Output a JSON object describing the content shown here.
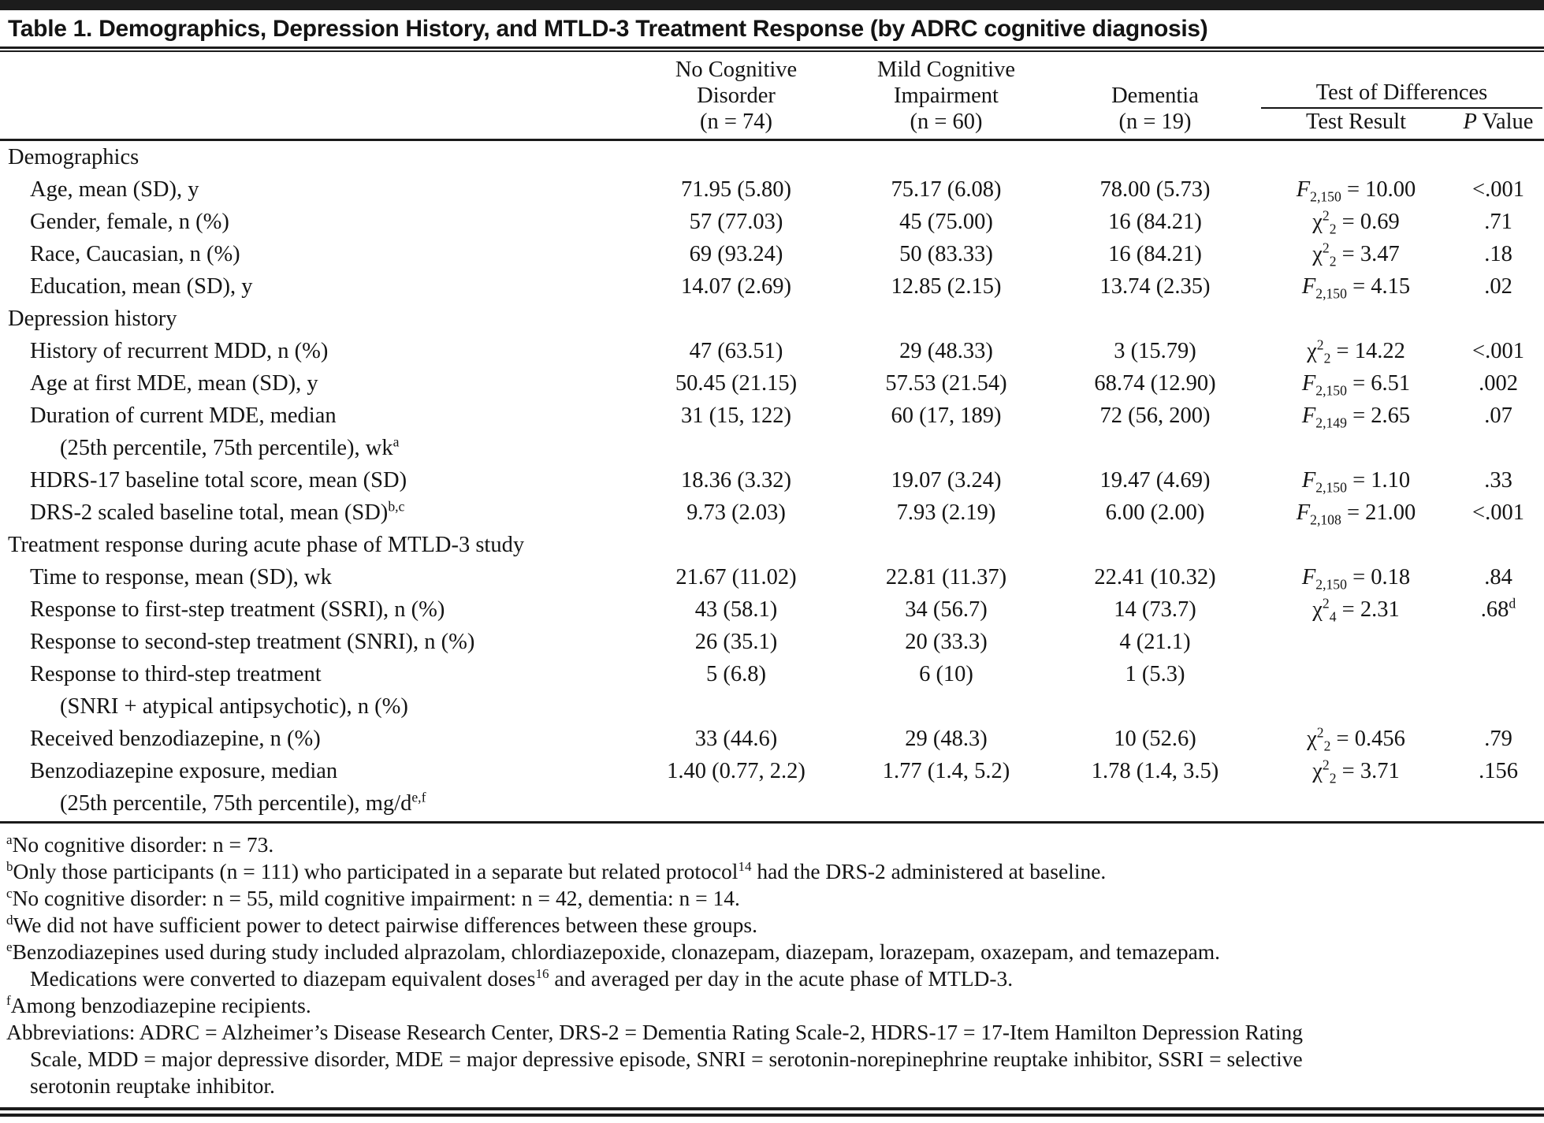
{
  "title": "Table 1. Demographics, Depression History, and MTLD-3 Treatment Response (by ADRC cognitive diagnosis)",
  "table": {
    "columns": [
      {
        "line1": "No Cognitive",
        "line2": "Disorder",
        "n": "(n = 74)"
      },
      {
        "line1": "Mild Cognitive",
        "line2": "Impairment",
        "n": "(n = 60)"
      },
      {
        "line1": "Dementia",
        "line2": "",
        "n": "(n = 19)"
      }
    ],
    "test_of_differences_label": "Test of Differences",
    "test_result_label": "Test Result",
    "p_value_label": [
      {
        "t": "P",
        "i": true
      },
      {
        "t": " Value"
      }
    ],
    "rows": [
      {
        "section": "Demographics"
      },
      {
        "label": [
          {
            "t": "Age, mean (SD), y"
          }
        ],
        "v1": "71.95 (5.80)",
        "v2": "75.17 (6.08)",
        "v3": "78.00 (5.73)",
        "test": [
          {
            "t": "F",
            "i": true
          },
          {
            "sub": "2,150"
          },
          {
            "t": " = 10.00"
          }
        ],
        "p": [
          {
            "t": "<.001"
          }
        ]
      },
      {
        "label": [
          {
            "t": "Gender, female, n (%)"
          }
        ],
        "v1": "57 (77.03)",
        "v2": "45 (75.00)",
        "v3": "16 (84.21)",
        "test": [
          {
            "t": "χ"
          },
          {
            "sup": "2"
          },
          {
            "sub": "2"
          },
          {
            "t": " = 0.69"
          }
        ],
        "p": [
          {
            "t": ".71"
          }
        ]
      },
      {
        "label": [
          {
            "t": "Race, Caucasian, n (%)"
          }
        ],
        "v1": "69 (93.24)",
        "v2": "50 (83.33)",
        "v3": "16 (84.21)",
        "test": [
          {
            "t": "χ"
          },
          {
            "sup": "2"
          },
          {
            "sub": "2"
          },
          {
            "t": " = 3.47"
          }
        ],
        "p": [
          {
            "t": ".18"
          }
        ]
      },
      {
        "label": [
          {
            "t": "Education, mean (SD), y"
          }
        ],
        "v1": "14.07 (2.69)",
        "v2": "12.85 (2.15)",
        "v3": "13.74 (2.35)",
        "test": [
          {
            "t": "F",
            "i": true
          },
          {
            "sub": "2,150"
          },
          {
            "t": " = 4.15"
          }
        ],
        "p": [
          {
            "t": ".02"
          }
        ]
      },
      {
        "section": "Depression history"
      },
      {
        "label": [
          {
            "t": "History of recurrent MDD, n (%)"
          }
        ],
        "v1": "47 (63.51)",
        "v2": "29 (48.33)",
        "v3": "3 (15.79)",
        "test": [
          {
            "t": "χ"
          },
          {
            "sup": "2"
          },
          {
            "sub": "2"
          },
          {
            "t": " = 14.22"
          }
        ],
        "p": [
          {
            "t": "<.001"
          }
        ]
      },
      {
        "label": [
          {
            "t": "Age at first MDE, mean (SD), y"
          }
        ],
        "v1": "50.45 (21.15)",
        "v2": "57.53 (21.54)",
        "v3": "68.74 (12.90)",
        "test": [
          {
            "t": "F",
            "i": true
          },
          {
            "sub": "2,150"
          },
          {
            "t": " = 6.51"
          }
        ],
        "p": [
          {
            "t": ".002"
          }
        ]
      },
      {
        "label": [
          {
            "t": "Duration of current MDE, median"
          }
        ],
        "label2": [
          {
            "t": "(25th percentile, 75th percentile), wk"
          },
          {
            "sup": "a"
          }
        ],
        "v1": "31 (15, 122)",
        "v2": "60 (17, 189)",
        "v3": "72 (56, 200)",
        "test": [
          {
            "t": "F",
            "i": true
          },
          {
            "sub": "2,149"
          },
          {
            "t": " = 2.65"
          }
        ],
        "p": [
          {
            "t": ".07"
          }
        ]
      },
      {
        "label": [
          {
            "t": "HDRS-17 baseline total score, mean (SD)"
          }
        ],
        "v1": "18.36 (3.32)",
        "v2": "19.07 (3.24)",
        "v3": "19.47 (4.69)",
        "test": [
          {
            "t": "F",
            "i": true
          },
          {
            "sub": "2,150"
          },
          {
            "t": " = 1.10"
          }
        ],
        "p": [
          {
            "t": ".33"
          }
        ]
      },
      {
        "label": [
          {
            "t": "DRS-2 scaled baseline total, mean (SD)"
          },
          {
            "sup": "b,c"
          }
        ],
        "v1": "9.73 (2.03)",
        "v2": "7.93 (2.19)",
        "v3": "6.00 (2.00)",
        "test": [
          {
            "t": "F",
            "i": true
          },
          {
            "sub": "2,108"
          },
          {
            "t": " = 21.00"
          }
        ],
        "p": [
          {
            "t": "<.001"
          }
        ]
      },
      {
        "section": "Treatment response during acute phase of MTLD-3 study"
      },
      {
        "label": [
          {
            "t": "Time to response, mean (SD), wk"
          }
        ],
        "v1": "21.67 (11.02)",
        "v2": "22.81 (11.37)",
        "v3": "22.41 (10.32)",
        "test": [
          {
            "t": "F",
            "i": true
          },
          {
            "sub": "2,150"
          },
          {
            "t": " = 0.18"
          }
        ],
        "p": [
          {
            "t": ".84"
          }
        ]
      },
      {
        "label": [
          {
            "t": "Response to first-step treatment (SSRI), n (%)"
          }
        ],
        "v1": "43 (58.1)",
        "v2": "34 (56.7)",
        "v3": "14 (73.7)",
        "test": [
          {
            "t": "χ"
          },
          {
            "sup": "2"
          },
          {
            "sub": "4"
          },
          {
            "t": " = 2.31"
          }
        ],
        "p": [
          {
            "t": ".68"
          },
          {
            "sup": "d"
          }
        ]
      },
      {
        "label": [
          {
            "t": "Response to second-step treatment (SNRI), n (%)"
          }
        ],
        "v1": "26 (35.1)",
        "v2": "20 (33.3)",
        "v3": "4 (21.1)"
      },
      {
        "label": [
          {
            "t": "Response to third-step treatment"
          }
        ],
        "label2": [
          {
            "t": "(SNRI + atypical antipsychotic), n (%)"
          }
        ],
        "v1": "5 (6.8)",
        "v2": "6 (10)",
        "v3": "1 (5.3)"
      },
      {
        "label": [
          {
            "t": "Received benzodiazepine, n (%)"
          }
        ],
        "v1": "33 (44.6)",
        "v2": "29 (48.3)",
        "v3": "10 (52.6)",
        "test": [
          {
            "t": "χ"
          },
          {
            "sup": "2"
          },
          {
            "sub": "2"
          },
          {
            "t": " = 0.456"
          }
        ],
        "p": [
          {
            "t": ".79"
          }
        ]
      },
      {
        "label": [
          {
            "t": "Benzodiazepine exposure, median"
          }
        ],
        "label2": [
          {
            "t": "(25th percentile, 75th percentile), mg/d"
          },
          {
            "sup": "e,f"
          }
        ],
        "v1": "1.40 (0.77, 2.2)",
        "v2": "1.77 (1.4, 5.2)",
        "v3": "1.78 (1.4, 3.5)",
        "test": [
          {
            "t": "χ"
          },
          {
            "sup": "2"
          },
          {
            "sub": "2"
          },
          {
            "t": " = 3.71"
          }
        ],
        "p": [
          {
            "t": ".156"
          }
        ]
      }
    ]
  },
  "footnotes": [
    {
      "lines": [
        [
          {
            "sup": "a"
          },
          {
            "t": "No cognitive disorder: n = 73."
          }
        ]
      ]
    },
    {
      "lines": [
        [
          {
            "sup": "b"
          },
          {
            "t": "Only those participants (n = 111) who participated in a separate but related protocol"
          },
          {
            "sup": "14"
          },
          {
            "t": " had the DRS-2 administered at baseline."
          }
        ]
      ]
    },
    {
      "lines": [
        [
          {
            "sup": "c"
          },
          {
            "t": "No cognitive disorder: n = 55, mild cognitive impairment: n = 42, dementia: n = 14."
          }
        ]
      ]
    },
    {
      "lines": [
        [
          {
            "sup": "d"
          },
          {
            "t": "We did not have sufficient power to detect pairwise differences between these groups."
          }
        ]
      ]
    },
    {
      "lines": [
        [
          {
            "sup": "e"
          },
          {
            "t": "Benzodiazepines used during study included alprazolam, chlordiazepoxide, clonazepam, diazepam, lorazepam, oxazepam, and temazepam."
          }
        ],
        [
          {
            "t": "Medications were converted to diazepam equivalent doses"
          },
          {
            "sup": "16"
          },
          {
            "t": " and averaged per day in the acute phase of MTLD-3."
          }
        ]
      ]
    },
    {
      "lines": [
        [
          {
            "sup": "f"
          },
          {
            "t": "Among benzodiazepine recipients."
          }
        ]
      ]
    },
    {
      "lines": [
        [
          {
            "t": "Abbreviations: ADRC = Alzheimer’s Disease Research Center, DRS-2 = Dementia Rating Scale-2, HDRS-17 = 17-Item Hamilton Depression Rating"
          }
        ],
        [
          {
            "t": "Scale, MDD = major depressive disorder, MDE = major depressive episode, SNRI = serotonin-norepinephrine reuptake inhibitor, SSRI = selective"
          }
        ],
        [
          {
            "t": "serotonin reuptake inhibitor."
          }
        ]
      ]
    }
  ]
}
